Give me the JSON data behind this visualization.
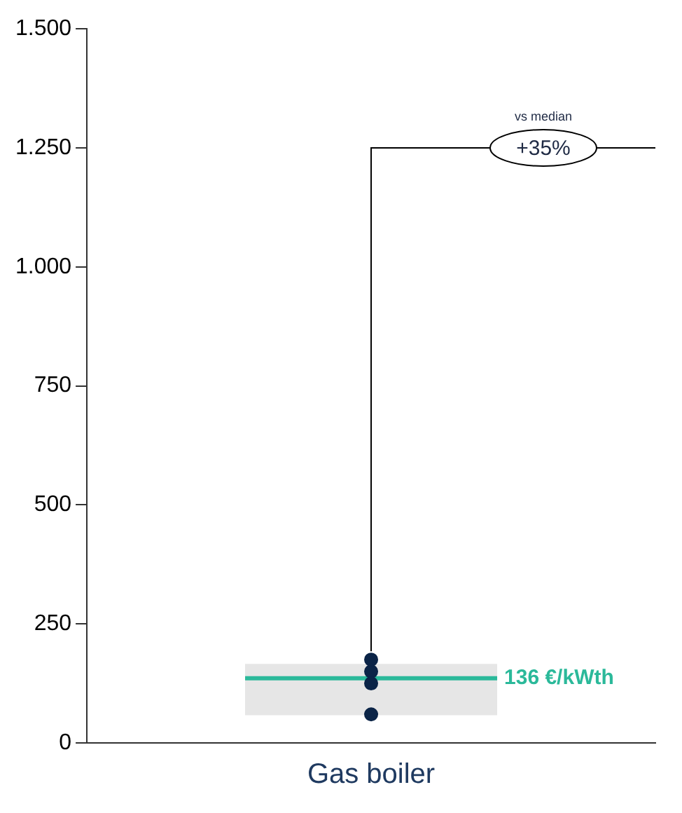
{
  "chart_data": {
    "type": "scatter",
    "categories": [
      "Gas boiler"
    ],
    "series": [
      {
        "x": [
          "Gas boiler",
          "Gas boiler",
          "Gas boiler",
          "Gas boiler"
        ],
        "values": [
          60,
          125,
          150,
          175
        ],
        "color": "#0b2447"
      }
    ],
    "ylim": [
      0,
      1500
    ],
    "yticks": [
      0,
      {
        "value": 250,
        "label": "250"
      },
      {
        "value": 500,
        "label": "500"
      },
      {
        "value": 750,
        "label": "750"
      },
      {
        "value": 1000,
        "label": "1.000"
      },
      {
        "value": 1250,
        "label": "1.250"
      },
      {
        "value": 1500,
        "label": "1.500"
      }
    ],
    "ref_lines": [
      {
        "axis": "y",
        "value": 136,
        "label": "136 €/kWth",
        "color": "#2bb99a"
      }
    ],
    "bands": [
      {
        "axis": "y",
        "from": 58,
        "to": 166,
        "color": "#e6e6e6"
      }
    ],
    "annotations": [
      "+35%",
      "vs median"
    ],
    "marker": "circle",
    "grid": false,
    "legend": false
  }
}
